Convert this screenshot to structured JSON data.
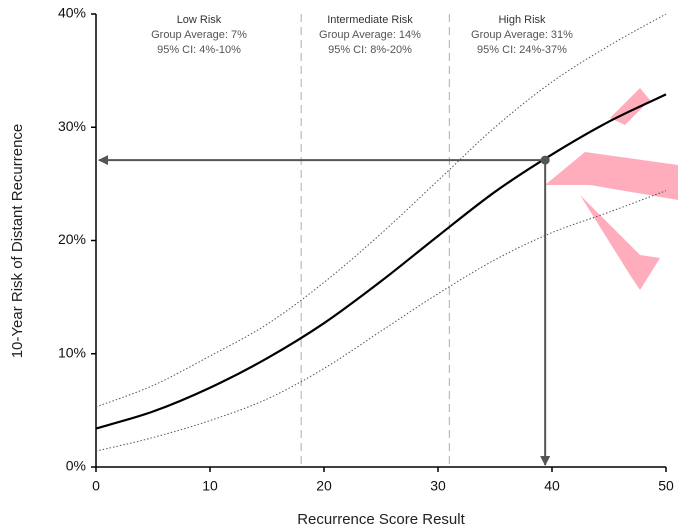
{
  "chart_data": {
    "type": "line",
    "x_label": "Recurrence Score Result",
    "y_label": "10-Year Risk of Distant Recurrence",
    "x": [
      0,
      5,
      10,
      15,
      20,
      25,
      30,
      35,
      40,
      45,
      50
    ],
    "series": [
      {
        "color": "#000000",
        "line_style": "solid",
        "values": [
          3.4,
          4.9,
          7.0,
          9.6,
          12.7,
          16.4,
          20.4,
          24.3,
          27.6,
          30.5,
          32.9
        ]
      },
      {
        "color": "#555555",
        "line_style": "dotted",
        "values": [
          5.3,
          7.2,
          9.8,
          12.6,
          16.3,
          20.6,
          25.3,
          30.0,
          34.0,
          37.2,
          40.0
        ]
      },
      {
        "color": "#555555",
        "line_style": "dotted",
        "values": [
          1.4,
          2.6,
          4.1,
          6.0,
          8.7,
          12.0,
          15.3,
          18.3,
          20.7,
          22.5,
          24.4
        ]
      }
    ],
    "cutoffs": [
      18,
      31
    ],
    "risk_groups": [
      {
        "name": "Low Risk",
        "average": "Group Average: 7%",
        "ci": "95% CI: 4%-10%"
      },
      {
        "name": "Intermediate Risk",
        "average": "Group Average: 14%",
        "ci": "95% CI: 8%-20%"
      },
      {
        "name": "High Risk",
        "average": "Group Average: 31%",
        "ci": "95% CI: 24%-37%"
      }
    ],
    "point": {
      "x": 39.4,
      "y": 27.1
    },
    "xlim": [
      0,
      50
    ],
    "ylim": [
      0,
      40
    ],
    "xticks": [
      0,
      10,
      20,
      30,
      40,
      50
    ],
    "yticks": [
      {
        "value": 0,
        "label": "0%"
      },
      {
        "value": 10,
        "label": "10%"
      },
      {
        "value": 20,
        "label": "20%"
      },
      {
        "value": 30,
        "label": "30%"
      },
      {
        "value": 40,
        "label": "40%"
      }
    ]
  }
}
